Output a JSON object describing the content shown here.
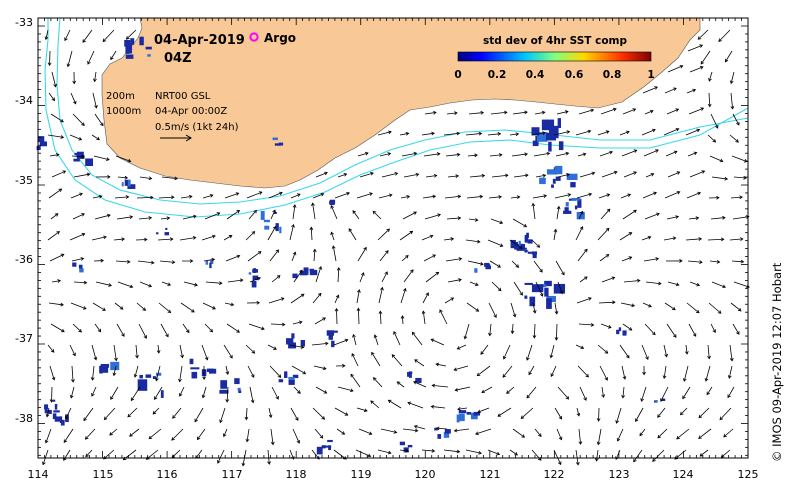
{
  "map": {
    "date": "04-Apr-2019",
    "time": "04Z",
    "argo_label": "Argo",
    "contour_shallow": "200m",
    "contour_deep": "1000m",
    "product": "NRT00 GSL",
    "product_time": "04-Apr 00:00Z",
    "scale_text": "0.5m/s (1kt 24h)",
    "colorbar_title": "std dev of 4hr SST comp",
    "colorbar_ticks": [
      "0",
      "0.2",
      "0.4",
      "0.6",
      "0.8",
      "1"
    ],
    "credit": "© IMOS 09-Apr-2019 12:07 Hobart",
    "lon_ticks": [
      "114",
      "115",
      "116",
      "117",
      "118",
      "119",
      "120",
      "121",
      "122",
      "123",
      "124",
      "125"
    ],
    "lat_ticks": [
      "-33",
      "-34",
      "-35",
      "-36",
      "-37",
      "-38"
    ],
    "colors": {
      "land": "#f8c896",
      "contour": "#3ad8e8",
      "argo": "#ff00ff",
      "patch": "#1a2aa0"
    }
  }
}
